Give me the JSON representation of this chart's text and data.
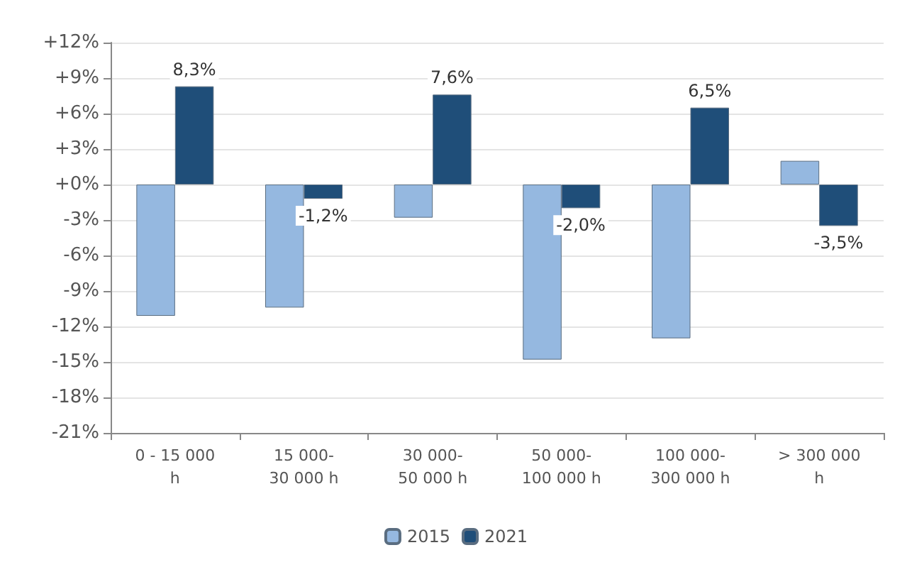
{
  "chart_data": {
    "type": "bar",
    "categories": [
      "0 - 15 000\nh",
      "15 000-\n30 000 h",
      "30 000-\n50 000 h",
      "50 000-\n100 000 h",
      "100 000-\n300 000 h",
      "> 300 000\nh"
    ],
    "series": [
      {
        "name": "2015",
        "color": "#95b8e0",
        "values": [
          -11.1,
          -10.4,
          -2.8,
          -14.8,
          -13.0,
          2.0
        ]
      },
      {
        "name": "2021",
        "color": "#1f4e79",
        "values": [
          8.3,
          -1.2,
          7.6,
          -2.0,
          6.5,
          -3.5
        ],
        "value_labels": [
          "8,3%",
          "-1,2%",
          "7,6%",
          "-2,0%",
          "6,5%",
          "-3,5%"
        ]
      }
    ],
    "ylim": [
      -21,
      12
    ],
    "yticks": [
      {
        "value": -21,
        "label": "-21%"
      },
      {
        "value": -18,
        "label": "-18%"
      },
      {
        "value": -15,
        "label": "-15%"
      },
      {
        "value": -12,
        "label": "-12%"
      },
      {
        "value": -9,
        "label": "-9%"
      },
      {
        "value": -6,
        "label": "-6%"
      },
      {
        "value": -3,
        "label": "-3%"
      },
      {
        "value": 0,
        "label": "+0%"
      },
      {
        "value": 3,
        "label": "+3%"
      },
      {
        "value": 6,
        "label": "+6%"
      },
      {
        "value": 9,
        "label": "+9%"
      },
      {
        "value": 12,
        "label": "+12%"
      }
    ],
    "grid": "y",
    "legend": "bottom"
  }
}
